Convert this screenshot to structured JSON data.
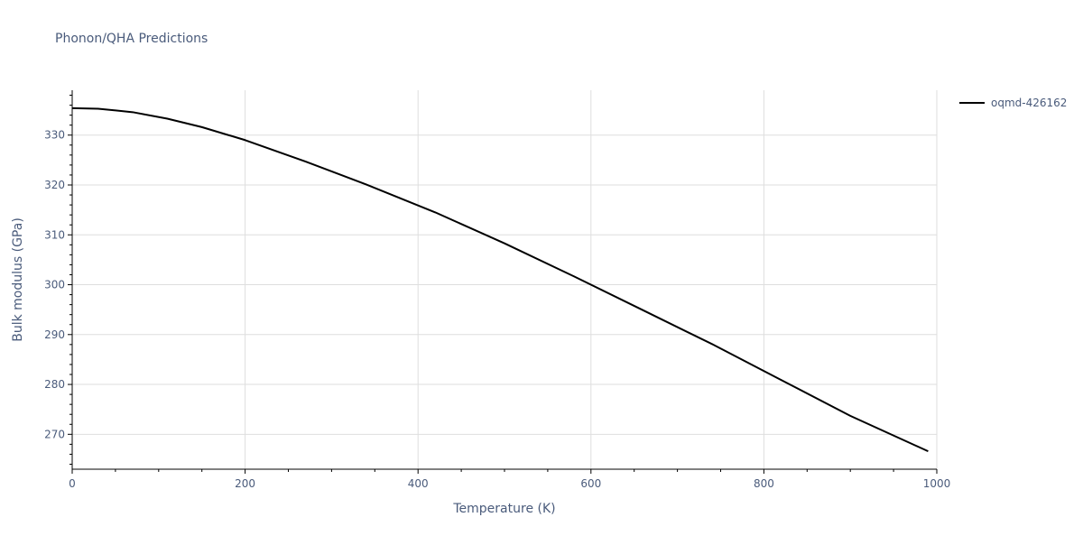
{
  "chart_data": {
    "type": "line",
    "title": "Phonon/QHA Predictions",
    "xlabel": "Temperature (K)",
    "ylabel": "Bulk modulus (GPa)",
    "xlim": [
      0,
      1000
    ],
    "ylim": [
      263,
      339
    ],
    "xticks": [
      0,
      200,
      400,
      600,
      800,
      1000
    ],
    "yticks": [
      270,
      280,
      290,
      300,
      310,
      320,
      330
    ],
    "grid": true,
    "legend_position": "top-right",
    "colors": {
      "line": "#000000",
      "grid": "#dedede",
      "axis": "#000000",
      "text": "#4a5b7b"
    },
    "series": [
      {
        "name": "oqmd-426162",
        "x": [
          0,
          30,
          70,
          110,
          150,
          200,
          270,
          340,
          420,
          500,
          580,
          660,
          740,
          820,
          900,
          990
        ],
        "y": [
          335.4,
          335.3,
          334.6,
          333.3,
          331.6,
          329.0,
          324.7,
          320.1,
          314.5,
          308.3,
          301.7,
          294.9,
          288.1,
          280.9,
          273.7,
          266.6
        ]
      }
    ]
  }
}
